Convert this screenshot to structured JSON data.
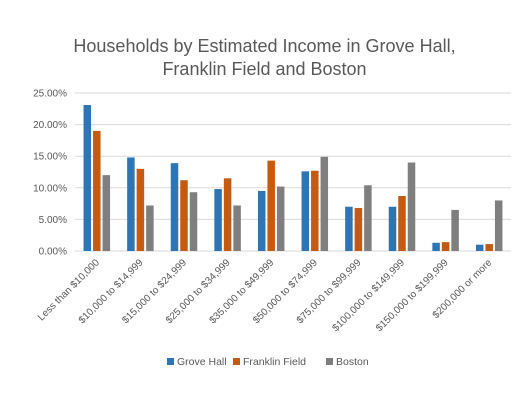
{
  "chart_data": {
    "type": "bar",
    "title": "Households by Estimated Income in Grove Hall, Franklin Field and Boston",
    "title_lines": [
      "Households by Estimated Income in Grove Hall,",
      "Franklin Field and Boston"
    ],
    "xlabel": "",
    "ylabel": "",
    "ylim": [
      0,
      0.25
    ],
    "yticks": [
      0,
      0.05,
      0.1,
      0.15,
      0.2,
      0.25
    ],
    "ytick_labels": [
      "0.00%",
      "5.00%",
      "10.00%",
      "15.00%",
      "20.00%",
      "25.00%"
    ],
    "grid": true,
    "legend_position": "bottom",
    "categories": [
      "Less than $10,000",
      "$10,000 to $14,999",
      "$15,000 to $24,999",
      "$25,000 to $34,999",
      "$35,000 to $49,999",
      "$50,000 to $74,999",
      "$75,000 to $99,999",
      "$100,000 to $149,999",
      "$150,000 to $199,999",
      "$200,000 or more"
    ],
    "series": [
      {
        "name": "Grove Hall",
        "color": "#2e75b6",
        "values": [
          0.231,
          0.148,
          0.139,
          0.098,
          0.095,
          0.126,
          0.07,
          0.07,
          0.013,
          0.01
        ]
      },
      {
        "name": "Franklin Field",
        "color": "#c55a11",
        "values": [
          0.19,
          0.13,
          0.112,
          0.115,
          0.143,
          0.127,
          0.068,
          0.087,
          0.014,
          0.011
        ]
      },
      {
        "name": "Boston",
        "color": "#7f7f7f",
        "values": [
          0.12,
          0.072,
          0.093,
          0.072,
          0.102,
          0.149,
          0.104,
          0.14,
          0.065,
          0.08
        ]
      }
    ]
  }
}
